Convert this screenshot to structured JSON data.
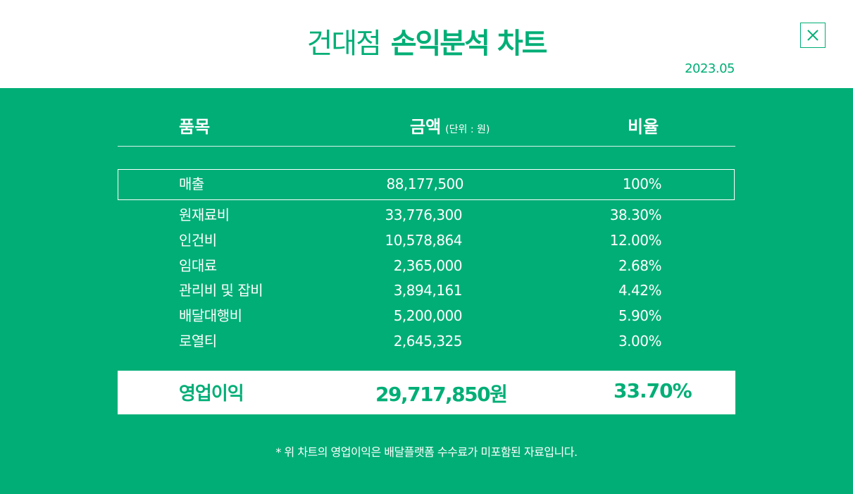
{
  "header": {
    "title_light": "건대점",
    "title_bold": "손익분석 차트",
    "date": "2023.05"
  },
  "icons": {
    "close": "close-icon"
  },
  "colors": {
    "brand_green": "#00ae76",
    "white": "#ffffff"
  },
  "table": {
    "headers": {
      "item": "품목",
      "amount": "금액",
      "amount_unit": "(단위 : 원)",
      "ratio": "비율"
    },
    "revenue": {
      "item": "매출",
      "amount": "88,177,500",
      "ratio": "100%"
    },
    "rows": [
      {
        "item": "원재료비",
        "amount": "33,776,300",
        "ratio": "38.30%"
      },
      {
        "item": "인건비",
        "amount": "10,578,864",
        "ratio": "12.00%"
      },
      {
        "item": "임대료",
        "amount": "2,365,000",
        "ratio": "2.68%"
      },
      {
        "item": "관리비 및 잡비",
        "amount": "3,894,161",
        "ratio": "4.42%"
      },
      {
        "item": "배달대행비",
        "amount": "5,200,000",
        "ratio": "5.90%"
      },
      {
        "item": "로열티",
        "amount": "2,645,325",
        "ratio": "3.00%"
      }
    ],
    "total": {
      "item": "영업이익",
      "amount": "29,717,850원",
      "ratio": "33.70%"
    }
  },
  "footnote": "* 위 차트의 영업이익은 배달플랫폼 수수료가 미포함된 자료입니다."
}
